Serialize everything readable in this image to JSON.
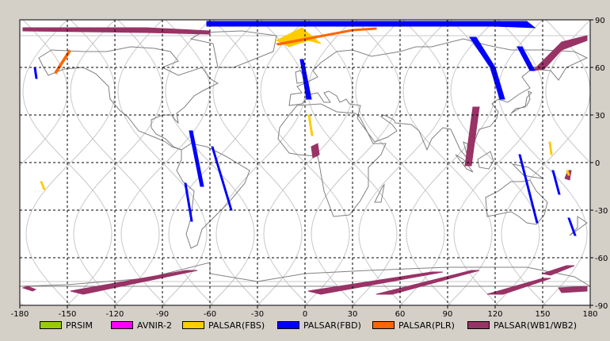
{
  "map": {
    "projection": "equirectangular",
    "lon_range": [
      -180,
      180
    ],
    "lat_range": [
      -90,
      90
    ],
    "x_ticks": [
      -180,
      -150,
      -120,
      -90,
      -60,
      -30,
      0,
      30,
      60,
      90,
      120,
      150,
      180
    ],
    "x_tick_labels": [
      "-180",
      "-150",
      "-120",
      "-90",
      "-60",
      "-30",
      "0",
      "30",
      "60",
      "90",
      "120",
      "150",
      "180"
    ],
    "y_ticks": [
      90,
      60,
      30,
      0,
      -30,
      -60,
      -90
    ],
    "y_tick_labels": [
      "90",
      "60",
      "30",
      "0",
      "-30",
      "-60",
      "-90"
    ],
    "grid": "dashed",
    "background": "#ffffff",
    "land_outline_color": "#808080",
    "orbit_track_color": "#c8c8c8"
  },
  "legend": {
    "placement": "bottom",
    "items": [
      {
        "label": "PRSIM",
        "color": "#99cc00"
      },
      {
        "label": "AVNIR-2",
        "color": "#ff00ff"
      },
      {
        "label": "PALSAR(FBS)",
        "color": "#ffcc00"
      },
      {
        "label": "PALSAR(FBD)",
        "color": "#0000ff"
      },
      {
        "label": "PALSAR(PLR)",
        "color": "#ff6600"
      },
      {
        "label": "PALSAR(WB1/WB2)",
        "color": "#993366"
      }
    ]
  },
  "coverage": {
    "wb": [
      [
        [
          -178,
          85
        ],
        [
          -100,
          85
        ],
        [
          -60,
          83
        ],
        [
          -60,
          81
        ],
        [
          -100,
          82
        ],
        [
          -178,
          83
        ]
      ],
      [
        [
          144,
          58
        ],
        [
          162,
          76
        ],
        [
          178,
          80
        ],
        [
          178,
          77
        ],
        [
          162,
          71
        ],
        [
          151,
          59
        ]
      ],
      [
        [
          101,
          -2
        ],
        [
          106,
          35
        ],
        [
          110,
          35
        ],
        [
          105,
          -2
        ]
      ],
      [
        [
          4,
          10
        ],
        [
          8,
          12
        ],
        [
          9,
          5
        ],
        [
          5,
          3
        ]
      ],
      [
        [
          164,
          -10
        ],
        [
          166,
          -5
        ],
        [
          168,
          -5
        ],
        [
          167,
          -11
        ]
      ],
      [
        [
          -175,
          -78
        ],
        [
          -170,
          -80
        ],
        [
          -172,
          -81
        ],
        [
          -178,
          -79
        ]
      ],
      [
        [
          -148,
          -81
        ],
        [
          -75,
          -68
        ],
        [
          -68,
          -68
        ],
        [
          -140,
          -83
        ]
      ],
      [
        [
          2,
          -81
        ],
        [
          80,
          -69
        ],
        [
          87,
          -69
        ],
        [
          10,
          -83
        ]
      ],
      [
        [
          45,
          -83
        ],
        [
          105,
          -68
        ],
        [
          110,
          -68
        ],
        [
          55,
          -83
        ]
      ],
      [
        [
          115,
          -83
        ],
        [
          150,
          -73
        ],
        [
          155,
          -73
        ],
        [
          125,
          -83
        ]
      ],
      [
        [
          150,
          -70
        ],
        [
          165,
          -65
        ],
        [
          170,
          -65
        ],
        [
          155,
          -71
        ]
      ],
      [
        [
          160,
          -79
        ],
        [
          178,
          -78
        ],
        [
          178,
          -81
        ],
        [
          162,
          -82
        ]
      ]
    ],
    "fbd": [
      [
        [
          -62,
          89
        ],
        [
          140,
          89
        ],
        [
          145,
          85
        ],
        [
          120,
          86
        ],
        [
          -62,
          86
        ]
      ],
      [
        [
          -1,
          65
        ],
        [
          4,
          40
        ],
        [
          1,
          40
        ],
        [
          -3,
          65
        ]
      ],
      [
        [
          108,
          79
        ],
        [
          120,
          60
        ],
        [
          126,
          40
        ],
        [
          123,
          40
        ],
        [
          117,
          60
        ],
        [
          104,
          79
        ]
      ],
      [
        [
          137,
          73
        ],
        [
          145,
          58
        ],
        [
          142,
          58
        ],
        [
          134,
          73
        ]
      ],
      [
        [
          -73,
          20
        ],
        [
          -66,
          -15
        ],
        [
          -64,
          -15
        ],
        [
          -71,
          20
        ]
      ],
      [
        [
          -76,
          -13
        ],
        [
          -72,
          -37
        ],
        [
          -71,
          -37
        ],
        [
          -75,
          -13
        ]
      ],
      [
        [
          -59,
          10
        ],
        [
          -47,
          -30
        ],
        [
          -46,
          -30
        ],
        [
          -58,
          10
        ]
      ],
      [
        [
          135,
          5
        ],
        [
          146,
          -38
        ],
        [
          147,
          -38
        ],
        [
          136,
          5
        ]
      ],
      [
        [
          156,
          -5
        ],
        [
          160,
          -20
        ],
        [
          161,
          -20
        ],
        [
          157,
          -5
        ]
      ],
      [
        [
          166,
          -35
        ],
        [
          170,
          -46
        ],
        [
          171,
          -46
        ],
        [
          167,
          -35
        ]
      ],
      [
        [
          -171,
          60
        ],
        [
          -170,
          53
        ],
        [
          -169,
          53
        ],
        [
          -170,
          60
        ]
      ]
    ],
    "fbs": [
      [
        [
          -18,
          77
        ],
        [
          -2,
          85
        ],
        [
          10,
          75
        ],
        [
          2,
          77
        ],
        [
          -10,
          73
        ]
      ],
      [
        [
          2,
          30
        ],
        [
          4,
          17
        ],
        [
          5,
          17
        ],
        [
          3,
          30
        ]
      ],
      [
        [
          -167,
          -12
        ],
        [
          -165,
          -17
        ],
        [
          -164,
          -17
        ],
        [
          -166,
          -12
        ]
      ],
      [
        [
          154,
          13
        ],
        [
          155,
          5
        ],
        [
          156,
          5
        ],
        [
          155,
          13
        ]
      ],
      [
        [
          165,
          -5
        ],
        [
          166,
          -8
        ],
        [
          167,
          -8
        ],
        [
          166,
          -5
        ]
      ]
    ],
    "plr": [
      [
        [
          -18,
          75
        ],
        [
          30,
          84
        ],
        [
          45,
          85
        ],
        [
          45,
          84
        ],
        [
          30,
          83
        ],
        [
          -17,
          74
        ]
      ],
      [
        [
          -158,
          57
        ],
        [
          -149,
          71
        ],
        [
          -148,
          70
        ],
        [
          -157,
          56
        ]
      ]
    ]
  }
}
